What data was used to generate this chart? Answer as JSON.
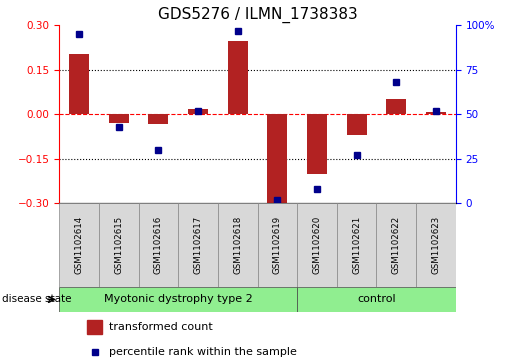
{
  "title": "GDS5276 / ILMN_1738383",
  "samples": [
    "GSM1102614",
    "GSM1102615",
    "GSM1102616",
    "GSM1102617",
    "GSM1102618",
    "GSM1102619",
    "GSM1102620",
    "GSM1102621",
    "GSM1102622",
    "GSM1102623"
  ],
  "transformed_count": [
    0.205,
    -0.028,
    -0.032,
    0.018,
    0.248,
    -0.3,
    -0.2,
    -0.068,
    0.052,
    0.008
  ],
  "percentile_rank": [
    95,
    43,
    30,
    52,
    97,
    2,
    8,
    27,
    68,
    52
  ],
  "group1_label": "Myotonic dystrophy type 2",
  "group1_count": 6,
  "group2_label": "control",
  "group2_count": 4,
  "group_color": "#90EE90",
  "disease_state_label": "disease state",
  "ylim_left": [
    -0.3,
    0.3
  ],
  "ylim_right": [
    0,
    100
  ],
  "yticks_left": [
    -0.3,
    -0.15,
    0.0,
    0.15,
    0.3
  ],
  "yticks_right": [
    0,
    25,
    50,
    75,
    100
  ],
  "bar_color": "#B22222",
  "dot_color": "#00008B",
  "bar_width": 0.5,
  "legend_bar_label": "transformed count",
  "legend_dot_label": "percentile rank within the sample",
  "title_fontsize": 11,
  "tick_fontsize": 7.5,
  "sample_label_fontsize": 6.2,
  "group_label_fontsize": 8,
  "legend_fontsize": 8
}
